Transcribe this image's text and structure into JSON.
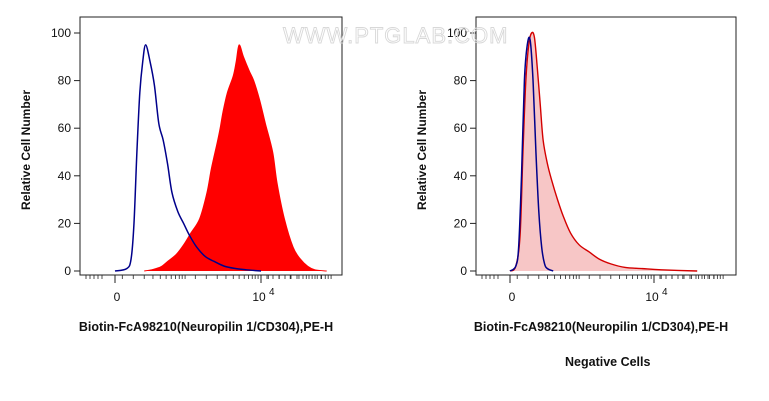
{
  "watermark": "WWW.PTGLAB.COM",
  "chart_data": [
    {
      "type": "area",
      "title": "",
      "xlabel": "Biotin-FcA98210(Neuropilin 1/CD304),PE-H",
      "ylabel": "Relative Cell Number",
      "x_scale": "biexponential",
      "x_tick_labels": [
        {
          "text": "0",
          "exp": ""
        },
        {
          "text": "10",
          "exp": "4"
        }
      ],
      "yticks": [
        0,
        20,
        40,
        60,
        80,
        100
      ],
      "ylim": [
        0,
        100
      ],
      "series": [
        {
          "kind": "filled",
          "color": "#ff0000",
          "x": [
            20,
            25,
            28,
            32,
            36,
            42,
            47,
            52,
            58,
            63,
            66,
            70,
            72,
            74,
            77,
            81,
            83,
            85,
            88,
            92,
            95,
            99,
            103,
            108,
            111,
            116,
            122,
            127,
            132,
            137,
            145
          ],
          "y": [
            0,
            0.5,
            1,
            2,
            4,
            7,
            11,
            16,
            22,
            33,
            43,
            54,
            60,
            67,
            75,
            82,
            88,
            95,
            90,
            84,
            80,
            72,
            62,
            50,
            37,
            22,
            10,
            5,
            2,
            0.5,
            0
          ]
        },
        {
          "kind": "line",
          "color": "#00008b",
          "x": [
            0,
            8,
            11,
            13,
            15,
            17,
            19,
            21,
            24,
            27,
            30,
            33,
            36,
            39,
            43,
            47,
            51,
            56,
            62,
            68,
            75,
            83,
            90,
            100
          ],
          "y": [
            0,
            1,
            5,
            20,
            50,
            75,
            88,
            95,
            88,
            78,
            62,
            55,
            45,
            33,
            25,
            20,
            15,
            10,
            6,
            4,
            2,
            1,
            0.5,
            0
          ]
        }
      ]
    },
    {
      "type": "area",
      "title": "",
      "xlabel": "Biotin-FcA98210(Neuropilin 1/CD304),PE-H",
      "ylabel": "Relative Cell Number",
      "caption": "Negative Cells",
      "x_scale": "biexponential",
      "x_tick_labels": [
        {
          "text": "0",
          "exp": ""
        },
        {
          "text": "10",
          "exp": "4"
        }
      ],
      "yticks": [
        0,
        20,
        40,
        60,
        80,
        100
      ],
      "ylim": [
        0,
        100
      ],
      "series": [
        {
          "kind": "filled-light",
          "color": "#d40000",
          "x": [
            0,
            4,
            7,
            9,
            11,
            13,
            15,
            17,
            19,
            21,
            23,
            26,
            29,
            33,
            37,
            42,
            48,
            55,
            62,
            70,
            80,
            92,
            105,
            130
          ],
          "y": [
            0,
            2,
            15,
            50,
            80,
            95,
            100,
            98,
            85,
            70,
            55,
            45,
            38,
            30,
            23,
            16,
            11,
            8,
            5,
            3,
            1.5,
            1,
            0.5,
            0
          ]
        },
        {
          "kind": "line",
          "color": "#00008b",
          "x": [
            0,
            4,
            6,
            8,
            10,
            12,
            14,
            16,
            18,
            20,
            22,
            24,
            26,
            30
          ],
          "y": [
            0,
            2,
            10,
            40,
            80,
            95,
            97,
            80,
            50,
            25,
            10,
            3,
            1,
            0
          ]
        }
      ]
    }
  ]
}
